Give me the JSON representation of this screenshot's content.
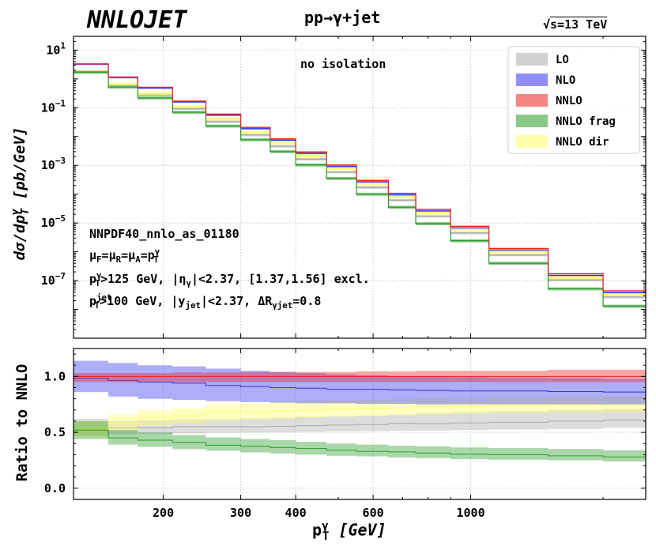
{
  "header": {
    "brand": "NNLOJET",
    "process": "pp→γ+jet",
    "energy_prefix": "√",
    "energy_rest": "s=13 TeV"
  },
  "info_lines": {
    "pdf": "NNPDF40_nnlo_as_01180",
    "scales": {
      "a": "μ",
      "b": "F",
      "c": "=μ",
      "d": "R",
      "e": "=μ",
      "f": "A",
      "g": "=p",
      "h_sup": "γ",
      "h_sub": "T"
    },
    "photon_cuts": {
      "p": "p",
      "sup": "γ",
      "sub": "T",
      "rest1": ">125 GeV, |η",
      "eta_sub": "γ",
      "rest2": "|<2.37, [1.37,1.56] excl."
    },
    "jet_cuts": {
      "p": "p",
      "sup": "jet",
      "sub": "T",
      "rest1": ">100 GeV, |y",
      "y_sub": "jet",
      "rest2": "|<2.37, ΔR",
      "dr_sub": "γjet",
      "rest3": "=0.8"
    }
  },
  "axis_labels": {
    "top_y": {
      "a": "dσ/dp",
      "sup": "γ",
      "sub": "T",
      "b": " [pb/GeV]"
    },
    "bottom_y": "Ratio to NNLO",
    "x": {
      "p": "p",
      "sup": "γ",
      "sub": "T",
      "unit": " [GeV]"
    }
  },
  "chart_data": [
    {
      "type": "area",
      "title": "pp→γ+jet, √s=13 TeV",
      "annotation": "no isolation",
      "xscale": "log",
      "yscale": "log",
      "xlim": [
        125,
        2500
      ],
      "ylim": [
        1e-09,
        30
      ],
      "bin_edges": [
        125,
        150,
        175,
        210,
        250,
        300,
        350,
        400,
        470,
        550,
        650,
        750,
        900,
        1100,
        1500,
        2000,
        2500
      ],
      "y_ticks": [
        {
          "value": 10,
          "base": "10",
          "exp": "1"
        },
        {
          "value": 0.1,
          "base": "10",
          "exp": "−1"
        },
        {
          "value": 0.001,
          "base": "10",
          "exp": "−3"
        },
        {
          "value": 1e-05,
          "base": "10",
          "exp": "−5"
        },
        {
          "value": 1e-07,
          "base": "10",
          "exp": "−7"
        }
      ],
      "legend_position": "top-right",
      "series": [
        {
          "name": "LO",
          "color": "#a9a9a9",
          "values": [
            1.74,
            0.625,
            0.277,
            0.093,
            0.0328,
            0.0114,
            0.00461,
            0.00164,
            0.000581,
            0.000172,
            6.2e-05,
            1.71e-05,
            4.5e-06,
            7.7e-07,
            1.05e-07,
            2.7e-08
          ],
          "rel_lo": 0.9,
          "rel_hi": 1.1
        },
        {
          "name": "NLO",
          "color": "#3333ee",
          "values": [
            3.25,
            1.12,
            0.483,
            0.16,
            0.0553,
            0.0188,
            0.00748,
            0.00262,
            0.000912,
            0.000266,
            9.4e-05,
            2.59e-05,
            6.7e-06,
            1.13e-06,
            1.5e-07,
            3.8e-08
          ],
          "rel_lo": 0.93,
          "rel_hi": 1.08
        },
        {
          "name": "NNLO",
          "color": "#ee2222",
          "values": [
            3.3,
            1.16,
            0.51,
            0.17,
            0.06,
            0.0207,
            0.0083,
            0.00293,
            0.00103,
            0.000301,
            0.000107,
            2.96e-05,
            7.7e-06,
            1.3e-06,
            1.73e-07,
            4.4e-08
          ],
          "rel_lo": 0.96,
          "rel_hi": 1.05
        },
        {
          "name": "NNLO frag",
          "color": "#2a9a2a",
          "values": [
            1.72,
            0.523,
            0.219,
            0.0695,
            0.0232,
            0.00774,
            0.00301,
            0.00104,
            0.000354,
            0.0001,
            3.51e-05,
            9.5e-06,
            2.42e-06,
            4e-07,
            5.2e-08,
            1.3e-08
          ],
          "rel_lo": 0.88,
          "rel_hi": 1.12
        },
        {
          "name": "NNLO dir",
          "color": "#ffff66",
          "values": [
            1.75,
            0.67,
            0.32,
            0.11,
            0.0408,
            0.0142,
            0.00592,
            0.00214,
            0.00076,
            0.000225,
            8.13e-05,
            2.24e-05,
            5.89e-06,
            9.9e-07,
            1.29e-07,
            3.3e-08
          ],
          "rel_lo": 0.88,
          "rel_hi": 1.12
        }
      ]
    },
    {
      "type": "area",
      "title": "Ratio to NNLO",
      "xscale": "log",
      "xlim": [
        125,
        2500
      ],
      "ylim": [
        -0.1,
        1.25
      ],
      "y_ticks": [
        0.0,
        0.5,
        1.0
      ],
      "x_ticks": [
        {
          "value": 200,
          "label": "200"
        },
        {
          "value": 300,
          "label": "300"
        },
        {
          "value": 400,
          "label": "400"
        },
        {
          "value": 600,
          "label": "600"
        },
        {
          "value": 1000,
          "label": "1000"
        }
      ],
      "bin_edges": [
        125,
        150,
        175,
        210,
        250,
        300,
        350,
        400,
        470,
        550,
        650,
        750,
        900,
        1100,
        1500,
        2000,
        2500
      ],
      "series": [
        {
          "name": "LO",
          "color": "#a9a9a9",
          "central": [
            0.53,
            0.54,
            0.54,
            0.55,
            0.55,
            0.55,
            0.555,
            0.56,
            0.565,
            0.57,
            0.58,
            0.578,
            0.585,
            0.59,
            0.6,
            0.61
          ],
          "lo": [
            0.47,
            0.48,
            0.485,
            0.49,
            0.495,
            0.5,
            0.5,
            0.505,
            0.51,
            0.51,
            0.515,
            0.515,
            0.52,
            0.525,
            0.53,
            0.54
          ],
          "hi": [
            0.62,
            0.6,
            0.61,
            0.615,
            0.62,
            0.625,
            0.63,
            0.64,
            0.645,
            0.65,
            0.66,
            0.67,
            0.68,
            0.69,
            0.7,
            0.71
          ]
        },
        {
          "name": "NLO",
          "color": "#3333ee",
          "central": [
            0.985,
            0.965,
            0.95,
            0.94,
            0.92,
            0.91,
            0.9,
            0.895,
            0.885,
            0.885,
            0.88,
            0.875,
            0.87,
            0.87,
            0.865,
            0.86
          ],
          "lo": [
            0.86,
            0.82,
            0.8,
            0.79,
            0.78,
            0.77,
            0.765,
            0.76,
            0.76,
            0.755,
            0.755,
            0.75,
            0.75,
            0.75,
            0.75,
            0.75
          ],
          "hi": [
            1.14,
            1.12,
            1.1,
            1.09,
            1.07,
            1.05,
            1.04,
            1.03,
            1.02,
            1.01,
            1.0,
            1.0,
            0.995,
            0.99,
            0.985,
            0.98
          ]
        },
        {
          "name": "NNLO",
          "color": "#ee2222",
          "central": [
            1.0,
            1.0,
            1.0,
            1.0,
            1.0,
            1.0,
            1.0,
            1.0,
            1.0,
            1.0,
            1.0,
            1.0,
            1.0,
            1.0,
            1.0,
            1.0
          ],
          "lo": [
            0.95,
            0.95,
            0.95,
            0.95,
            0.95,
            0.95,
            0.95,
            0.95,
            0.95,
            0.95,
            0.95,
            0.95,
            0.95,
            0.95,
            0.95,
            0.95
          ],
          "hi": [
            1.03,
            1.03,
            1.03,
            1.035,
            1.035,
            1.04,
            1.04,
            1.04,
            1.04,
            1.045,
            1.045,
            1.05,
            1.05,
            1.05,
            1.06,
            1.06
          ]
        },
        {
          "name": "NNLO frag",
          "color": "#2a9a2a",
          "central": [
            0.52,
            0.45,
            0.43,
            0.41,
            0.385,
            0.375,
            0.365,
            0.355,
            0.34,
            0.33,
            0.325,
            0.315,
            0.305,
            0.3,
            0.29,
            0.28
          ],
          "lo": [
            0.44,
            0.39,
            0.37,
            0.35,
            0.335,
            0.32,
            0.31,
            0.3,
            0.29,
            0.285,
            0.275,
            0.27,
            0.26,
            0.255,
            0.25,
            0.24
          ],
          "hi": [
            0.6,
            0.52,
            0.5,
            0.475,
            0.455,
            0.44,
            0.43,
            0.415,
            0.4,
            0.39,
            0.38,
            0.375,
            0.365,
            0.36,
            0.35,
            0.34
          ]
        },
        {
          "name": "NNLO dir",
          "color": "#ffff66",
          "central": [
            0.53,
            0.58,
            0.63,
            0.65,
            0.68,
            0.685,
            0.69,
            0.7,
            0.71,
            0.715,
            0.72,
            0.73,
            0.735,
            0.74,
            0.745,
            0.75
          ],
          "lo": [
            0.46,
            0.51,
            0.56,
            0.58,
            0.6,
            0.61,
            0.62,
            0.63,
            0.64,
            0.645,
            0.65,
            0.66,
            0.665,
            0.67,
            0.675,
            0.68
          ],
          "hi": [
            0.6,
            0.66,
            0.7,
            0.72,
            0.75,
            0.76,
            0.77,
            0.78,
            0.785,
            0.79,
            0.8,
            0.805,
            0.81,
            0.815,
            0.82,
            0.825
          ]
        }
      ]
    }
  ]
}
